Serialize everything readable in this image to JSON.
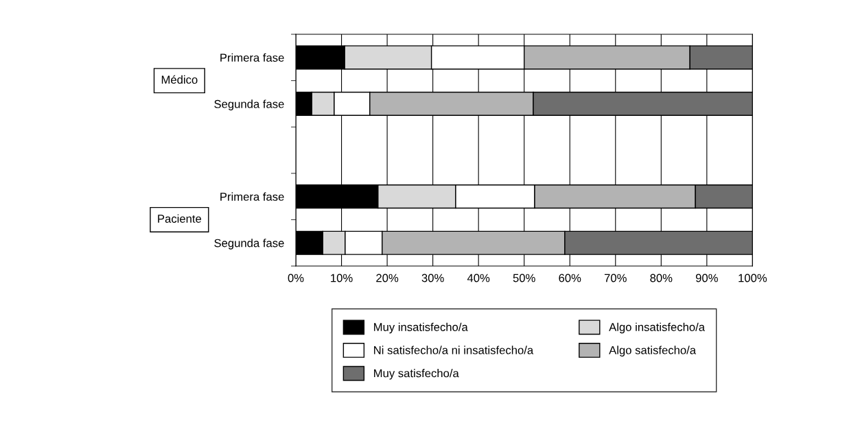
{
  "chart_data": {
    "type": "bar",
    "orientation": "horizontal",
    "stacked": true,
    "categories": [
      "Primera fase",
      "Segunda fase",
      null,
      "Primera fase",
      "Segunda fase"
    ],
    "series": [
      {
        "name": "Muy insatisfecho/a",
        "color": "#000000",
        "values": [
          10.7,
          3.5,
          null,
          18.0,
          5.9
        ]
      },
      {
        "name": "Algo insatisfecho/a",
        "color": "#d9d9d9",
        "values": [
          19.0,
          4.9,
          null,
          17.0,
          4.9
        ]
      },
      {
        "name": "Ni satisfecho/a ni insatisfecho/a",
        "color": "#ffffff",
        "values": [
          20.3,
          7.8,
          null,
          17.3,
          8.1
        ]
      },
      {
        "name": "Algo satisfecho/a",
        "color": "#b3b3b3",
        "values": [
          36.3,
          35.8,
          null,
          35.2,
          40.0
        ]
      },
      {
        "name": "Muy satisfecho/a",
        "color": "#6e6e6e",
        "values": [
          13.7,
          48.0,
          null,
          12.5,
          41.1
        ]
      }
    ],
    "xlim": [
      0,
      100
    ],
    "xticks": [
      {
        "value": 0,
        "label": "0%"
      },
      {
        "value": 10,
        "label": "10%"
      },
      {
        "value": 20,
        "label": "20%"
      },
      {
        "value": 30,
        "label": "30%"
      },
      {
        "value": 40,
        "label": "40%"
      },
      {
        "value": 50,
        "label": "50%"
      },
      {
        "value": 60,
        "label": "60%"
      },
      {
        "value": 70,
        "label": "70%"
      },
      {
        "value": 80,
        "label": "80%"
      },
      {
        "value": 90,
        "label": "90%"
      },
      {
        "value": 100,
        "label": "100%"
      }
    ],
    "annotations": [
      "Médico",
      "Paciente"
    ],
    "grid": "x",
    "legend": "bottom"
  }
}
